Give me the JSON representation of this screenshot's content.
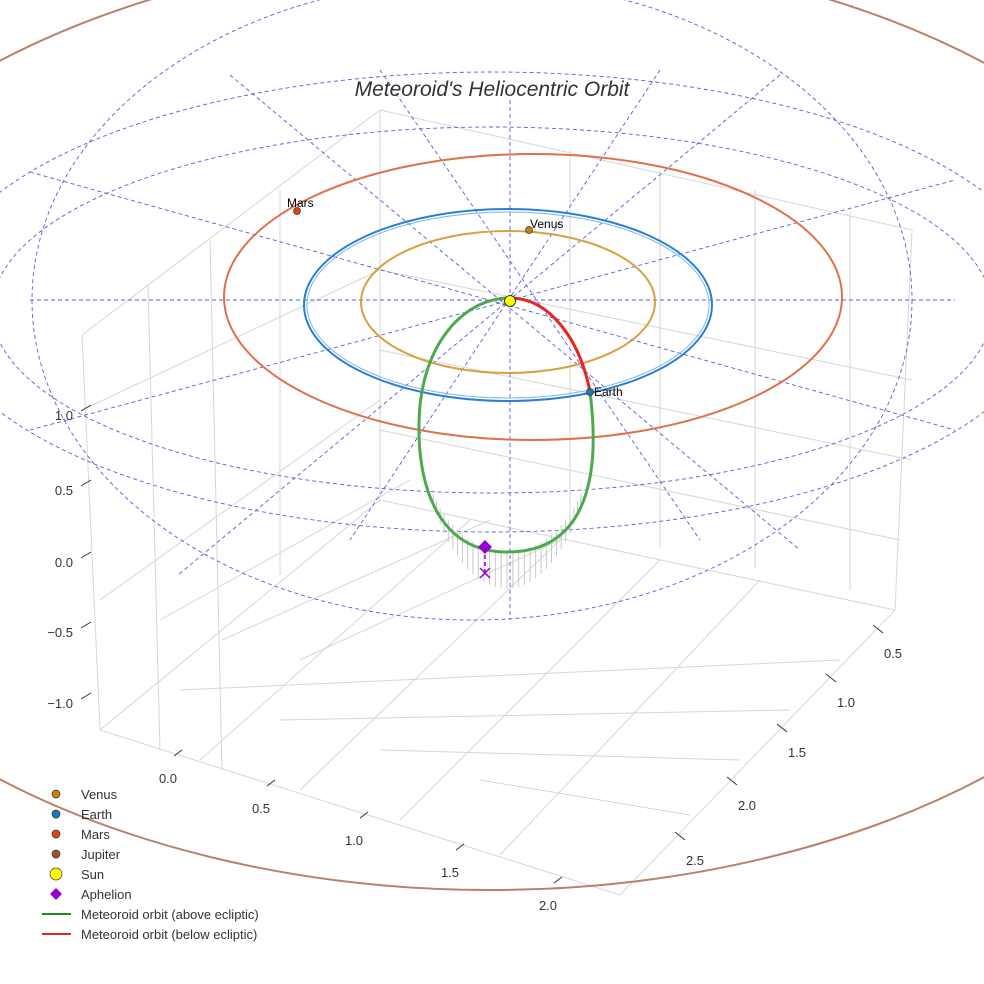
{
  "chart_data": {
    "type": "3d-line",
    "title": "Meteoroid's Heliocentric Orbit",
    "x_ticks": [
      "0.0",
      "0.5",
      "1.0",
      "1.5",
      "2.0"
    ],
    "y_ticks": [
      "0.5",
      "1.0",
      "1.5",
      "2.0",
      "2.5"
    ],
    "z_ticks": [
      "1.0",
      "0.5",
      "0.0",
      "−0.5",
      "−1.0"
    ],
    "planets": [
      {
        "name": "Venus",
        "color": "#c8820a",
        "orbit_color": "#d9a040",
        "orbit_radius_au": 0.72
      },
      {
        "name": "Earth",
        "color": "#1f77b4",
        "orbit_color": "#2a7fd4",
        "orbit_radius_au": 1.0
      },
      {
        "name": "Mars",
        "color": "#d9480f",
        "orbit_color": "#e0704a",
        "orbit_radius_au": 1.52
      },
      {
        "name": "Jupiter",
        "color": "#a0522d",
        "orbit_color": "#b8826a",
        "orbit_radius_au": 5.2
      }
    ],
    "labels": {
      "venus": "Venus",
      "earth": "Earth",
      "mars": "Mars"
    },
    "legend": {
      "placement": "bottom-left",
      "entries": [
        {
          "label": "Venus",
          "marker": "circle",
          "color": "#c8820a"
        },
        {
          "label": "Earth",
          "marker": "circle",
          "color": "#1f77b4"
        },
        {
          "label": "Mars",
          "marker": "circle",
          "color": "#d9480f"
        },
        {
          "label": "Jupiter",
          "marker": "circle",
          "color": "#a0522d"
        },
        {
          "label": "Sun",
          "marker": "circle",
          "color": "#ffff00"
        },
        {
          "label": "Aphelion",
          "marker": "diamond",
          "color": "#9400d3"
        },
        {
          "label": "Meteoroid orbit (above ecliptic)",
          "marker": "line",
          "color": "#228b22"
        },
        {
          "label": "Meteoroid orbit (below ecliptic)",
          "marker": "line",
          "color": "#e8251f"
        }
      ]
    }
  }
}
